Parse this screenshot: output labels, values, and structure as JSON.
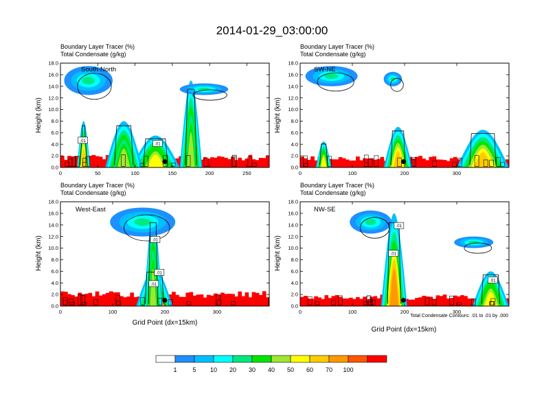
{
  "figure": {
    "title": "2014-01-29_03:00:00",
    "footnote": "Total Condensate Contours: .01 to .01 by .000",
    "xlabel": "Grid Point (dx=15km)",
    "ylabel": "Height (km)"
  },
  "colorbar": {
    "colors": [
      "#ffffff",
      "#1e90ff",
      "#00bfff",
      "#00ffff",
      "#00e880",
      "#00e600",
      "#a0e632",
      "#ffff00",
      "#ffcc00",
      "#ff9900",
      "#ff5500",
      "#ff0000"
    ],
    "labels": [
      "1",
      "5",
      "10",
      "20",
      "30",
      "40",
      "50",
      "60",
      "70",
      "100"
    ]
  },
  "chart_data": [
    {
      "type": "heatmap",
      "panel": "South-North",
      "title": "Boundary Layer Tracer   (%)",
      "subtitle": "Total Condensate   (g/kg)",
      "xlim": [
        0,
        280
      ],
      "ylim": [
        0,
        18
      ],
      "xticks": [
        "0",
        "50",
        "100",
        "150",
        "200",
        "250"
      ],
      "xtick_values": [
        0,
        50,
        100,
        150,
        200,
        250
      ],
      "yticks": [
        "0.0",
        "2.0",
        "4.0",
        "6.0",
        "8.0",
        "10.0",
        "12.0",
        "14.0",
        "16.0",
        "18.0"
      ],
      "contour_labels": [
        ".01",
        ".01"
      ],
      "marker_x": 140,
      "marker_y": 1.0,
      "surface_max": 2.2,
      "plumes": [
        {
          "x": [
            22,
            40
          ],
          "top": 8.0,
          "color_index": 5
        },
        {
          "x": [
            95,
            160
          ],
          "top": 5.5,
          "color_index": 4
        },
        {
          "x": [
            160,
            190
          ],
          "top": 15.0,
          "color_index": 3
        },
        {
          "x": [
            60,
            110
          ],
          "top": 8.0,
          "color_index": 3
        }
      ],
      "anvils": [
        {
          "x": [
            5,
            70
          ],
          "y": [
            12.5,
            17.5
          ]
        },
        {
          "x": [
            160,
            225
          ],
          "y": [
            12.5,
            14.5
          ]
        }
      ]
    },
    {
      "type": "heatmap",
      "panel": "SW-NE",
      "title": "Boundary Layer Tracer   (%)",
      "subtitle": "Total Condensate   (g/kg)",
      "xlim": [
        0,
        400
      ],
      "ylim": [
        0,
        18
      ],
      "xticks": [
        "0",
        "100",
        "200",
        "300"
      ],
      "xtick_values": [
        0,
        100,
        200,
        300
      ],
      "yticks": [
        "0.0",
        "2.0",
        "4.0",
        "6.0",
        "8.0",
        "10.0",
        "12.0",
        "14.0",
        "16.0",
        "18.0"
      ],
      "contour_labels": [],
      "marker_x": 198,
      "marker_y": 1.0,
      "surface_max": 2.0,
      "plumes": [
        {
          "x": [
            160,
            215
          ],
          "top": 7.0,
          "color_index": 5
        },
        {
          "x": [
            300,
            400
          ],
          "top": 6.5,
          "color_index": 5
        },
        {
          "x": [
            30,
            60
          ],
          "top": 4.5,
          "color_index": 4
        }
      ],
      "anvils": [
        {
          "x": [
            10,
            110
          ],
          "y": [
            14.0,
            17.5
          ]
        },
        {
          "x": [
            160,
            195
          ],
          "y": [
            14.0,
            16.5
          ]
        }
      ]
    },
    {
      "type": "heatmap",
      "panel": "West-East",
      "title": "Boundary Layer Tracer   (%)",
      "subtitle": "Total Condensate   (g/kg)",
      "xlim": [
        0,
        400
      ],
      "ylim": [
        0,
        18
      ],
      "xticks": [
        "0",
        "100",
        "200",
        "300"
      ],
      "xtick_values": [
        0,
        100,
        200,
        300
      ],
      "yticks": [
        "0.0",
        "2.0",
        "4.0",
        "6.0",
        "8.0",
        "10.0",
        "12.0",
        "14.0",
        "16.0",
        "18.0"
      ],
      "contour_labels": [
        ".01",
        ".01",
        ".01"
      ],
      "marker_x": 200,
      "marker_y": 1.0,
      "surface_max": 2.6,
      "plumes": [
        {
          "x": [
            145,
            215
          ],
          "top": 6.5,
          "color_index": 8
        },
        {
          "x": [
            160,
            195
          ],
          "top": 16.0,
          "color_index": 3
        }
      ],
      "anvils": [
        {
          "x": [
            95,
            220
          ],
          "y": [
            12.0,
            17.0
          ]
        }
      ]
    },
    {
      "type": "heatmap",
      "panel": "NW-SE",
      "title": "Boundary Layer Tracer   (%)",
      "subtitle": "Total Condensate   (g/kg)",
      "xlim": [
        0,
        400
      ],
      "ylim": [
        0,
        18
      ],
      "xticks": [
        "0",
        "100",
        "200",
        "300"
      ],
      "xtick_values": [
        0,
        100,
        200,
        300
      ],
      "yticks": [
        "0.0",
        "2.0",
        "4.0",
        "6.0",
        "8.0",
        "10.0",
        "12.0",
        "14.0",
        "16.0",
        "18.0"
      ],
      "contour_labels": [
        ".01",
        ".01",
        ".01"
      ],
      "marker_x": 198,
      "marker_y": 1.0,
      "surface_max": 2.0,
      "plumes": [
        {
          "x": [
            155,
            205
          ],
          "top": 16.0,
          "color_index": 6
        },
        {
          "x": [
            330,
            400
          ],
          "top": 6.0,
          "color_index": 4
        }
      ],
      "anvils": [
        {
          "x": [
            95,
            175
          ],
          "y": [
            12.5,
            16.5
          ]
        },
        {
          "x": [
            295,
            370
          ],
          "y": [
            10.0,
            12.0
          ]
        }
      ]
    }
  ]
}
